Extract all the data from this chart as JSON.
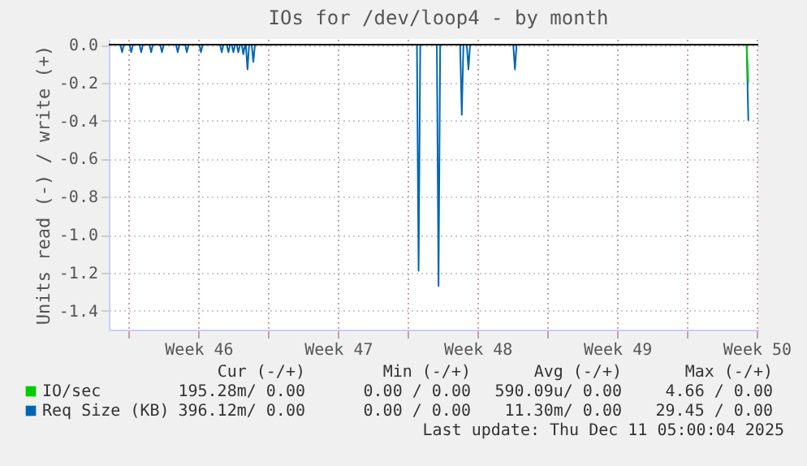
{
  "chart_data": {
    "type": "line",
    "title": "IOs for /dev/loop4 - by month",
    "ylabel": "Units read (-) / write (+)",
    "series": [
      {
        "name": "IO/sec",
        "color": "#00cc00",
        "x": [
          "2025-12-11T00:00",
          "2025-12-11T02:00"
        ],
        "values": [
          0,
          -0.2
        ]
      },
      {
        "name": "Req Size (KB)",
        "color": "#0066b3",
        "x": [
          "2025-11-09T14:00",
          "2025-11-09T16:00",
          "2025-11-09T18:00",
          "2025-11-10T01:00",
          "2025-11-10T03:00",
          "2025-11-10T05:00",
          "2025-11-10T13:00",
          "2025-11-10T15:00",
          "2025-11-10T17:00",
          "2025-11-11T01:00",
          "2025-11-11T03:00",
          "2025-11-11T05:00",
          "2025-11-11T14:00",
          "2025-11-11T16:00",
          "2025-11-11T18:00",
          "2025-11-12T09:00",
          "2025-11-12T11:00",
          "2025-11-12T13:00",
          "2025-11-12T20:00",
          "2025-11-12T22:00",
          "2025-11-13T00:00",
          "2025-11-13T13:00",
          "2025-11-13T15:00",
          "2025-11-13T17:00",
          "2025-11-14T14:00",
          "2025-11-14T16:00",
          "2025-11-14T18:00",
          "2025-11-14T22:00",
          "2025-11-15T00:00",
          "2025-11-15T02:00",
          "2025-11-15T04:00",
          "2025-11-15T06:00",
          "2025-11-15T08:00",
          "2025-11-15T10:00",
          "2025-11-15T12:00",
          "2025-11-15T14:00",
          "2025-11-15T16:00",
          "2025-11-15T18:00",
          "2025-11-15T20:00",
          "2025-11-15T21:00",
          "2025-11-15T23:00",
          "2025-11-16T01:00",
          "2025-11-16T04:00",
          "2025-11-16T06:00",
          "2025-11-16T08:00",
          "2025-11-24T11:00",
          "2025-11-24T13:00",
          "2025-11-24T15:00",
          "2025-11-25T11:00",
          "2025-11-25T13:00",
          "2025-11-25T15:00",
          "2025-11-26T15:00",
          "2025-11-26T17:00",
          "2025-11-26T19:00",
          "2025-11-26T23:00",
          "2025-11-27T01:00",
          "2025-11-27T03:00",
          "2025-11-29T07:00",
          "2025-11-29T09:00",
          "2025-11-29T11:00",
          "2025-12-11T00:00",
          "2025-12-11T02:00"
        ],
        "values": [
          0,
          -0.04,
          0,
          0,
          -0.04,
          0,
          0,
          -0.04,
          0,
          0,
          -0.04,
          0,
          0,
          -0.04,
          0,
          0,
          -0.04,
          0,
          0,
          -0.04,
          0,
          0,
          -0.04,
          0,
          0,
          -0.04,
          0,
          0,
          -0.04,
          0,
          0,
          -0.04,
          0,
          0,
          -0.04,
          0,
          0,
          -0.05,
          0,
          0,
          -0.13,
          0,
          0,
          -0.09,
          0,
          0,
          -1.19,
          0,
          0,
          -1.27,
          0,
          0,
          -0.37,
          0,
          0,
          -0.13,
          0,
          0,
          -0.13,
          0,
          0,
          -0.4
        ]
      }
    ],
    "xlim": [
      "2025-11-09T00:00",
      "2025-12-11T14:00"
    ],
    "xticks": [
      {
        "value": "2025-11-10T00:00",
        "label": null
      },
      {
        "value": "2025-11-13T12:00",
        "label": "Week 46"
      },
      {
        "value": "2025-11-17T00:00",
        "label": null
      },
      {
        "value": "2025-11-20T12:00",
        "label": "Week 47"
      },
      {
        "value": "2025-11-24T00:00",
        "label": null
      },
      {
        "value": "2025-11-27T12:00",
        "label": "Week 48"
      },
      {
        "value": "2025-12-01T00:00",
        "label": null
      },
      {
        "value": "2025-12-04T12:00",
        "label": "Week 49"
      },
      {
        "value": "2025-12-08T00:00",
        "label": null
      },
      {
        "value": "2025-12-11T12:00",
        "label": "Week 50"
      }
    ],
    "ylim": [
      -1.5,
      0.03
    ],
    "yticks": [
      {
        "value": 0,
        "label": "0.0"
      },
      {
        "value": -0.2,
        "label": "-0.2"
      },
      {
        "value": -0.4,
        "label": "-0.4"
      },
      {
        "value": -0.6,
        "label": "-0.6"
      },
      {
        "value": -0.8,
        "label": "-0.8"
      },
      {
        "value": -1.0,
        "label": "-1.0"
      },
      {
        "value": -1.2,
        "label": "-1.2"
      },
      {
        "value": -1.4,
        "label": "-1.4"
      }
    ],
    "grid": true,
    "legend": "bottom",
    "ref_lines": [
      {
        "axis": "y",
        "value": 0,
        "color": "#000000"
      }
    ],
    "annotations": [
      "Cur (-/+)",
      "Min (-/+)",
      "Avg (-/+)",
      "Max (-/+)",
      "195.28m/ 0.00",
      "0.00 / 0.00",
      "590.09u/ 0.00",
      "4.66 / 0.00",
      "396.12m/ 0.00",
      "0.00 / 0.00",
      "11.30m/ 0.00",
      "29.45 / 0.00",
      "Last update: Thu Dec 11 05:00:04 2025"
    ]
  }
}
